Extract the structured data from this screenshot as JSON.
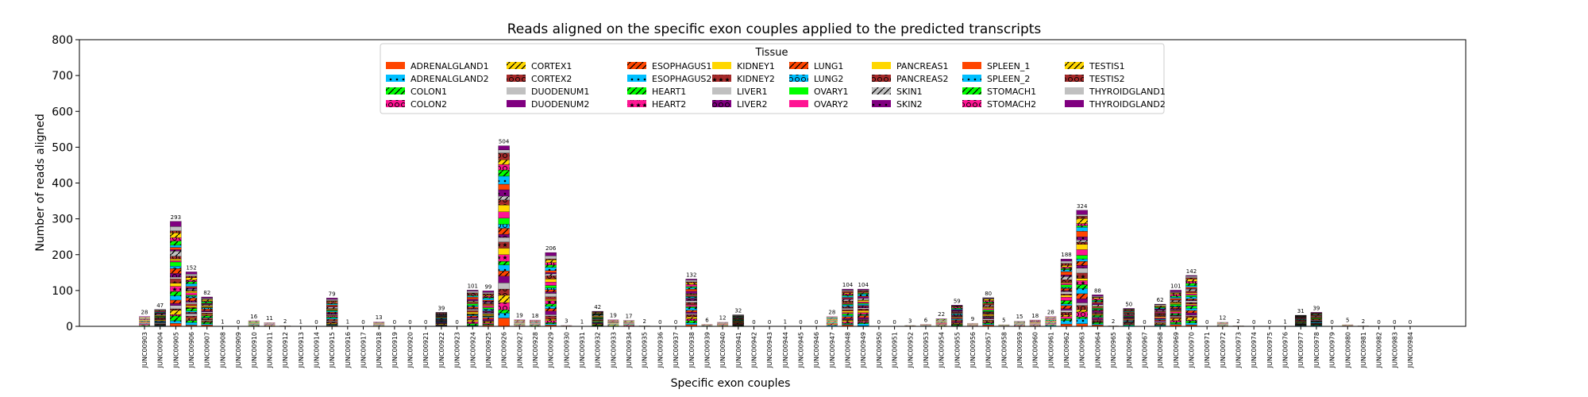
{
  "chart_data": {
    "type": "bar",
    "stacked": true,
    "title": "Reads aligned on the specific exon couples applied to the predicted transcripts",
    "xlabel": "Specific exon couples",
    "ylabel": "Number of reads aligned",
    "ylim": [
      0,
      800
    ],
    "yticks": [
      0,
      100,
      200,
      300,
      400,
      500,
      600,
      700,
      800
    ],
    "grid": false,
    "legend_title": "Tissue",
    "legend_position": "top-center",
    "categories": [
      "JUNC00903",
      "JUNC00904",
      "JUNC00905",
      "JUNC00906",
      "JUNC00907",
      "JUNC00908",
      "JUNC00909",
      "JUNC00910",
      "JUNC00911",
      "JUNC00912",
      "JUNC00913",
      "JUNC00914",
      "JUNC00915",
      "JUNC00916",
      "JUNC00917",
      "JUNC00918",
      "JUNC00919",
      "JUNC00920",
      "JUNC00921",
      "JUNC00922",
      "JUNC00923",
      "JUNC00924",
      "JUNC00925",
      "JUNC00926",
      "JUNC00927",
      "JUNC00928",
      "JUNC00929",
      "JUNC00930",
      "JUNC00931",
      "JUNC00932",
      "JUNC00933",
      "JUNC00934",
      "JUNC00935",
      "JUNC00936",
      "JUNC00937",
      "JUNC00938",
      "JUNC00939",
      "JUNC00940",
      "JUNC00941",
      "JUNC00942",
      "JUNC00943",
      "JUNC00944",
      "JUNC00945",
      "JUNC00946",
      "JUNC00947",
      "JUNC00948",
      "JUNC00949",
      "JUNC00950",
      "JUNC00951",
      "JUNC00952",
      "JUNC00953",
      "JUNC00954",
      "JUNC00955",
      "JUNC00956",
      "JUNC00957",
      "JUNC00958",
      "JUNC00959",
      "JUNC00960",
      "JUNC00961",
      "JUNC00962",
      "JUNC00963",
      "JUNC00964",
      "JUNC00965",
      "JUNC00966",
      "JUNC00967",
      "JUNC00968",
      "JUNC00969",
      "JUNC00970",
      "JUNC00971",
      "JUNC00972",
      "JUNC00973",
      "JUNC00974",
      "JUNC00975",
      "JUNC00976",
      "JUNC00977",
      "JUNC00978",
      "JUNC00979",
      "JUNC00980",
      "JUNC00981",
      "JUNC00982",
      "JUNC00983",
      "JUNC00984"
    ],
    "totals": [
      28,
      47,
      293,
      152,
      82,
      1,
      0,
      16,
      11,
      2,
      1,
      0,
      79,
      1,
      0,
      13,
      0,
      0,
      0,
      39,
      0,
      101,
      99,
      504,
      19,
      18,
      206,
      3,
      1,
      42,
      19,
      17,
      2,
      0,
      0,
      132,
      6,
      12,
      32,
      0,
      0,
      1,
      0,
      0,
      28,
      104,
      104,
      0,
      0,
      3,
      6,
      22,
      59,
      9,
      80,
      5,
      15,
      18,
      28,
      188,
      324,
      88,
      2,
      50,
      0,
      62,
      101,
      142,
      0,
      12,
      2,
      0,
      0,
      1,
      31,
      39,
      0,
      5,
      2,
      0,
      0,
      0
    ],
    "series_names": [
      "ADRENALGLAND1",
      "ADRENALGLAND2",
      "COLON1",
      "COLON2",
      "CORTEX1",
      "CORTEX2",
      "DUODENUM1",
      "DUODENUM2",
      "ESOPHAGUS1",
      "ESOPHAGUS2",
      "HEART1",
      "HEART2",
      "KIDNEY1",
      "KIDNEY2",
      "LIVER1",
      "LIVER2",
      "LUNG1",
      "LUNG2",
      "OVARY1",
      "OVARY2",
      "PANCREAS1",
      "PANCREAS2",
      "SKIN1",
      "SKIN2",
      "SPLEEN_1",
      "SPLEEN_2",
      "STOMACH1",
      "STOMACH2",
      "TESTIS1",
      "TESTIS2",
      "THYROIDGLAND1",
      "THYROIDGLAND2"
    ],
    "series_colors": [
      "#ff4500",
      "#00bfff",
      "#00ff00",
      "#ff1493",
      "#ffd700",
      "#a52a2a",
      "#c0c0c0",
      "#800080",
      "#ff4500",
      "#00bfff",
      "#00ff00",
      "#ff1493",
      "#ffd700",
      "#a52a2a",
      "#c0c0c0",
      "#800080",
      "#ff4500",
      "#00bfff",
      "#00ff00",
      "#ff1493",
      "#ffd700",
      "#a52a2a",
      "#c0c0c0",
      "#800080",
      "#ff4500",
      "#00bfff",
      "#00ff00",
      "#ff1493",
      "#ffd700",
      "#a52a2a",
      "#c0c0c0",
      "#800080"
    ],
    "series_hatches": [
      "none",
      "dot",
      "slash",
      "circle",
      "slash",
      "circle",
      "none",
      "none",
      "slash",
      "dot",
      "slash",
      "star",
      "none",
      "star",
      "none",
      "circle",
      "slash",
      "circle",
      "none",
      "none",
      "none",
      "circle",
      "slash",
      "dot",
      "none",
      "dot",
      "slash",
      "circle",
      "slash",
      "circle",
      "none",
      "none"
    ]
  }
}
